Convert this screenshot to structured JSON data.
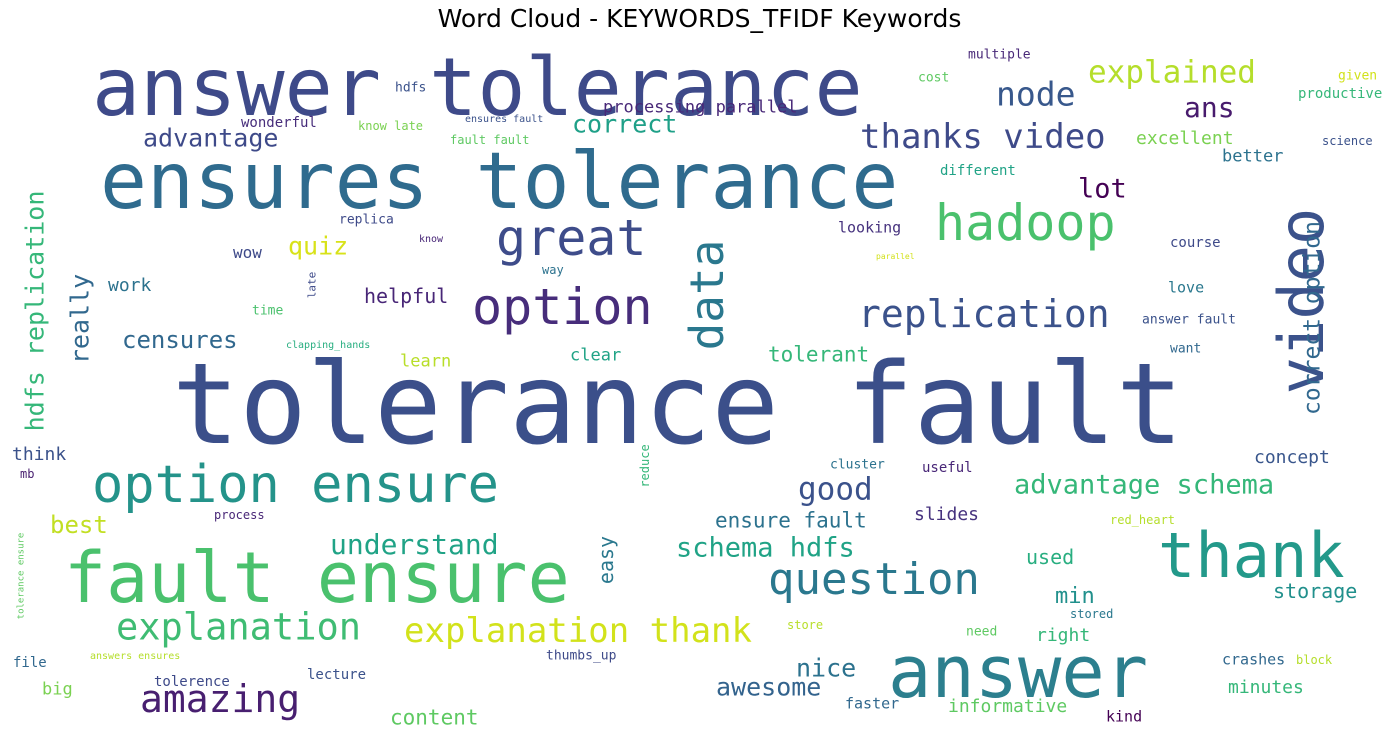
{
  "title": "Word Cloud - KEYWORDS_TFIDF Keywords",
  "colors": {
    "background": "#ffffff",
    "palette": [
      "#440154",
      "#3b528b",
      "#21908c",
      "#5ec962",
      "#fde725"
    ]
  },
  "words": [
    {
      "text": "tolerance fault",
      "color": "#3b4f8a"
    },
    {
      "text": "ensures tolerance",
      "color": "#2f6b8e"
    },
    {
      "text": "answer tolerance",
      "color": "#3e4a89"
    },
    {
      "text": "fault ensure",
      "color": "#4ac16d"
    },
    {
      "text": "answer",
      "color": "#2c7f8e"
    },
    {
      "text": "option ensure",
      "color": "#24938a"
    },
    {
      "text": "thank",
      "color": "#23998a"
    },
    {
      "text": "option",
      "color": "#472d7b"
    },
    {
      "text": "video",
      "color": "#3b528b"
    },
    {
      "text": "data",
      "color": "#2a788e"
    },
    {
      "text": "hadoop",
      "color": "#4ac16d"
    },
    {
      "text": "great",
      "color": "#3e4c8a"
    },
    {
      "text": "question",
      "color": "#2a788e"
    },
    {
      "text": "explanation",
      "color": "#3fbc73"
    },
    {
      "text": "explanation thank",
      "color": "#d2e21b"
    },
    {
      "text": "amazing",
      "color": "#481f70"
    },
    {
      "text": "replication",
      "color": "#3b528b"
    },
    {
      "text": "thanks video",
      "color": "#3e4a89"
    },
    {
      "text": "node",
      "color": "#38588c"
    },
    {
      "text": "explained",
      "color": "#b5de2b"
    },
    {
      "text": "ans",
      "color": "#481b6d"
    },
    {
      "text": "correct",
      "color": "#1fa088"
    },
    {
      "text": "advantage",
      "color": "#3e4a89"
    },
    {
      "text": "understand",
      "color": "#20a386"
    },
    {
      "text": "schema hdfs",
      "color": "#20a386"
    },
    {
      "text": "advantage schema",
      "color": "#35b779"
    },
    {
      "text": "good",
      "color": "#3b528b"
    },
    {
      "text": "lot",
      "color": "#440154"
    },
    {
      "text": "nice",
      "color": "#2c728e"
    },
    {
      "text": "awesome",
      "color": "#33638d"
    },
    {
      "text": "hdfs replication",
      "color": "#35b779"
    },
    {
      "text": "correct option",
      "color": "#31688e"
    },
    {
      "text": "really",
      "color": "#31688e"
    },
    {
      "text": "censures",
      "color": "#31688e"
    },
    {
      "text": "quiz",
      "color": "#d8e219"
    },
    {
      "text": "helpful",
      "color": "#482677"
    },
    {
      "text": "tolerant",
      "color": "#35b779"
    },
    {
      "text": "ensure fault",
      "color": "#2c728e"
    },
    {
      "text": "min",
      "color": "#21908c"
    },
    {
      "text": "best",
      "color": "#c2df23"
    },
    {
      "text": "easy",
      "color": "#2a788e"
    },
    {
      "text": "content",
      "color": "#5ec962"
    },
    {
      "text": "excellent",
      "color": "#7ad151"
    },
    {
      "text": "processing parallel",
      "color": "#482878"
    },
    {
      "text": "storage",
      "color": "#21908c"
    },
    {
      "text": "concept",
      "color": "#39568c"
    },
    {
      "text": "used",
      "color": "#28ae80"
    },
    {
      "text": "slides",
      "color": "#46327e"
    },
    {
      "text": "minutes",
      "color": "#35b779"
    },
    {
      "text": "informative",
      "color": "#5ec962"
    },
    {
      "text": "right",
      "color": "#35b779"
    },
    {
      "text": "work",
      "color": "#2c728e"
    },
    {
      "text": "wow",
      "color": "#3e4a89"
    },
    {
      "text": "clear",
      "color": "#20a386"
    },
    {
      "text": "learn",
      "color": "#b8de29"
    },
    {
      "text": "think",
      "color": "#3b528b"
    },
    {
      "text": "big",
      "color": "#7ad151"
    },
    {
      "text": "better",
      "color": "#2c728e"
    },
    {
      "text": "wonderful",
      "color": "#472d7b"
    },
    {
      "text": "lecture",
      "color": "#3b528b"
    },
    {
      "text": "tolerence",
      "color": "#3e4a89"
    },
    {
      "text": "faster",
      "color": "#31688e"
    },
    {
      "text": "kind",
      "color": "#440154"
    },
    {
      "text": "file",
      "color": "#31688e"
    },
    {
      "text": "crashes",
      "color": "#31688e"
    },
    {
      "text": "block",
      "color": "#b5de2b"
    },
    {
      "text": "looking",
      "color": "#46327e"
    },
    {
      "text": "different",
      "color": "#20a386"
    },
    {
      "text": "course",
      "color": "#3e4a89"
    },
    {
      "text": "love",
      "color": "#2a788e"
    },
    {
      "text": "answer fault",
      "color": "#3b528b"
    },
    {
      "text": "want",
      "color": "#31688e"
    },
    {
      "text": "cluster",
      "color": "#2c728e"
    },
    {
      "text": "useful",
      "color": "#482677"
    },
    {
      "text": "red_heart",
      "color": "#b5de2b"
    },
    {
      "text": "stored",
      "color": "#2a788e"
    },
    {
      "text": "need",
      "color": "#5ec962"
    },
    {
      "text": "store",
      "color": "#b8de29"
    },
    {
      "text": "thumbs_up",
      "color": "#3e4a89"
    },
    {
      "text": "process",
      "color": "#482677"
    },
    {
      "text": "reduce",
      "color": "#35b779"
    },
    {
      "text": "answers ensures",
      "color": "#b5de2b"
    },
    {
      "text": "tolerance ensure",
      "color": "#5ec962"
    },
    {
      "text": "mb",
      "color": "#481f70"
    },
    {
      "text": "time",
      "color": "#4ac16d"
    },
    {
      "text": "late",
      "color": "#3e4a89"
    },
    {
      "text": "clapping_hands",
      "color": "#28ae80"
    },
    {
      "text": "way",
      "color": "#2c728e"
    },
    {
      "text": "replica",
      "color": "#3e4a89"
    },
    {
      "text": "know",
      "color": "#482677"
    },
    {
      "text": "parallel",
      "color": "#d2e21b"
    },
    {
      "text": "hdfs",
      "color": "#3b528b"
    },
    {
      "text": "know late",
      "color": "#7ad151"
    },
    {
      "text": "ensures fault",
      "color": "#3b528b"
    },
    {
      "text": "fault fault",
      "color": "#5ec962"
    },
    {
      "text": "cost",
      "color": "#5ec962"
    },
    {
      "text": "multiple",
      "color": "#482878"
    },
    {
      "text": "given",
      "color": "#d2e21b"
    },
    {
      "text": "productive",
      "color": "#35b779"
    },
    {
      "text": "science",
      "color": "#3b528b"
    }
  ]
}
